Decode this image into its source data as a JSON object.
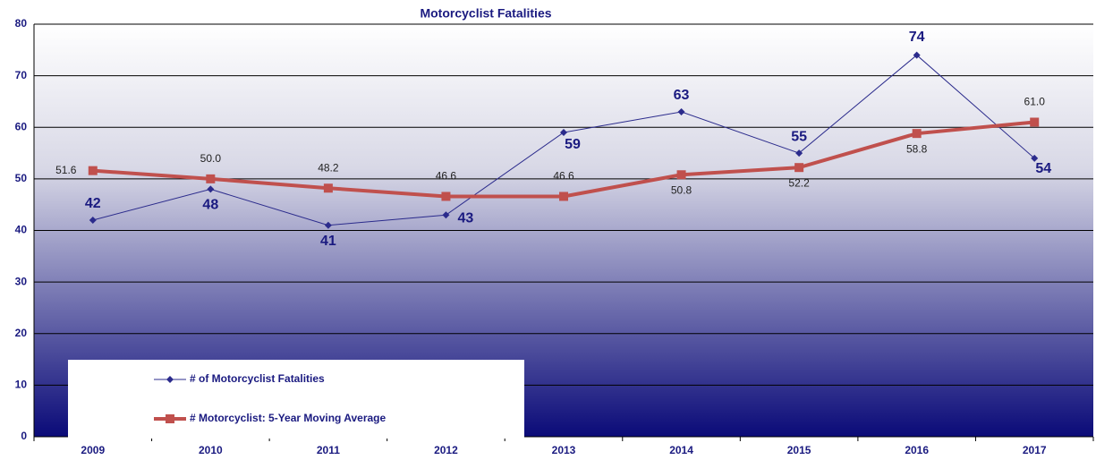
{
  "chart_data": {
    "type": "line",
    "title": "Motorcyclist Fatalities",
    "categories": [
      "2009",
      "2010",
      "2011",
      "2012",
      "2013",
      "2014",
      "2015",
      "2016",
      "2017"
    ],
    "series": [
      {
        "name": "# of Motorcyclist Fatalities",
        "color": "#2b2b8c",
        "values": [
          42,
          48,
          41,
          43,
          59,
          63,
          55,
          74,
          54
        ]
      },
      {
        "name": "# Motorcyclist: 5-Year Moving Average",
        "color": "#c0504d",
        "values": [
          51.6,
          50.0,
          48.2,
          46.6,
          46.6,
          50.8,
          52.2,
          58.8,
          61.0
        ],
        "value_labels": [
          "51.6",
          "50.0",
          "48.2",
          "46.6",
          "46.6",
          "50.8",
          "52.2",
          "58.8",
          "61.0"
        ]
      }
    ],
    "ylim": [
      0,
      80
    ],
    "yticks": [
      0,
      10,
      20,
      30,
      40,
      50,
      60,
      70,
      80
    ],
    "grid": true,
    "legend": "lower left"
  }
}
